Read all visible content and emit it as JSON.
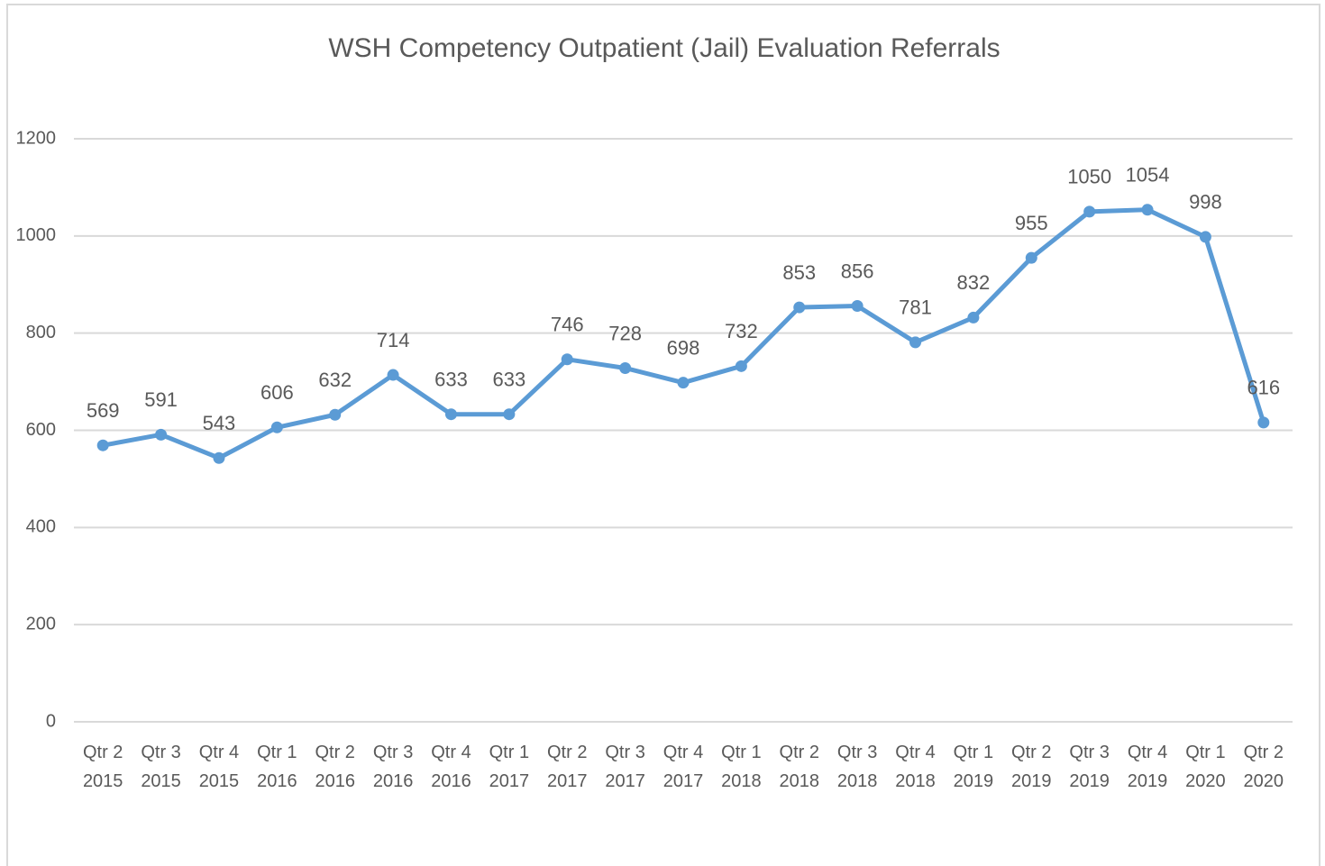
{
  "chart_data": {
    "type": "line",
    "title": "WSH Competency Outpatient (Jail) Evaluation Referrals",
    "categories": [
      "Qtr 2 2015",
      "Qtr 3 2015",
      "Qtr 4 2015",
      "Qtr 1 2016",
      "Qtr 2 2016",
      "Qtr 3 2016",
      "Qtr 4 2016",
      "Qtr 1 2017",
      "Qtr 2 2017",
      "Qtr 3 2017",
      "Qtr 4 2017",
      "Qtr 1 2018",
      "Qtr 2 2018",
      "Qtr 3 2018",
      "Qtr 4 2018",
      "Qtr 1 2019",
      "Qtr 2 2019",
      "Qtr 3 2019",
      "Qtr 4 2019",
      "Qtr 1 2020",
      "Qtr 2 2020"
    ],
    "values": [
      569,
      591,
      543,
      606,
      632,
      714,
      633,
      633,
      746,
      728,
      698,
      732,
      853,
      856,
      781,
      832,
      955,
      1050,
      1054,
      998,
      616
    ],
    "color": "#5b9bd5",
    "ylim": [
      0,
      1200
    ],
    "yticks": [
      0,
      200,
      400,
      600,
      800,
      1000,
      1200
    ],
    "grid": true
  }
}
